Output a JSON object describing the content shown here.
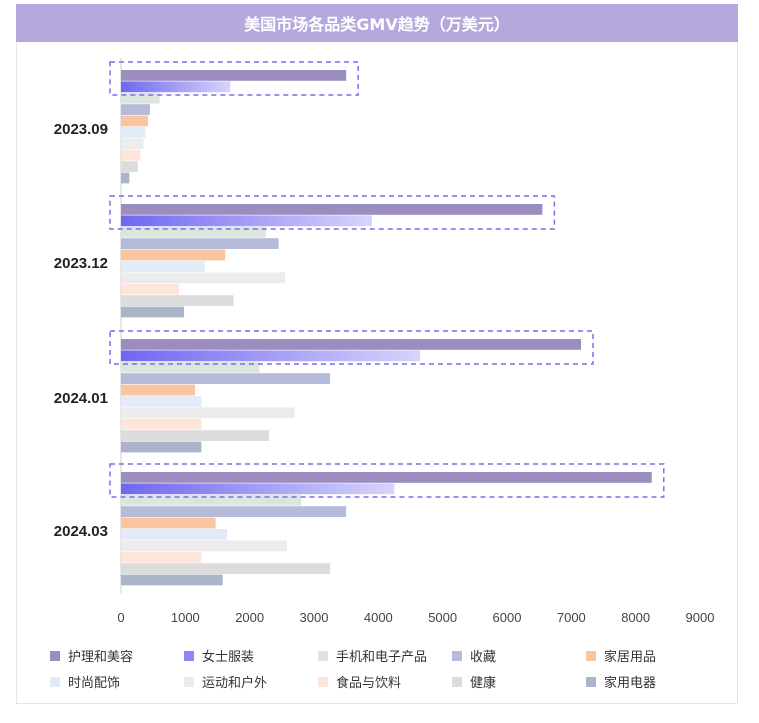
{
  "title": "美国市场各品类GMV趋势（万美元）",
  "colors": {
    "护理和美容": "#9b8dc0",
    "女士服装": "#8c86f7",
    "手机和电子产品": "#dde6dc",
    "收藏": "#b6bbd9",
    "家居用品": "#f8c59e",
    "时尚配饰": "#e2ebf8",
    "运动和户外": "#ececec",
    "食品与饮料": "#fde5da",
    "健康": "#dcdcdc",
    "家用电器": "#abb5c9",
    "highlight_border": "#7b6cf0"
  },
  "chart_data": {
    "type": "bar",
    "orientation": "horizontal",
    "title": "美国市场各品类GMV趋势（万美元）",
    "categories": [
      "2023.09",
      "2023.12",
      "2024.01",
      "2024.03"
    ],
    "xlim": [
      0,
      9000
    ],
    "xticks": [
      "0",
      "1000",
      "2000",
      "3000",
      "4000",
      "5000",
      "6000",
      "7000",
      "8000",
      "9000"
    ],
    "grid": false,
    "legend_position": "bottom",
    "series": [
      {
        "name": "护理和美容",
        "values": [
          3500,
          6550,
          7150,
          8250
        ]
      },
      {
        "name": "女士服装",
        "values": [
          1700,
          3900,
          4650,
          4250
        ]
      },
      {
        "name": "手机和电子产品",
        "values": [
          600,
          2250,
          2150,
          2800
        ]
      },
      {
        "name": "收藏",
        "values": [
          450,
          2450,
          3250,
          3500
        ]
      },
      {
        "name": "家居用品",
        "values": [
          420,
          1620,
          1150,
          1470
        ]
      },
      {
        "name": "时尚配饰",
        "values": [
          380,
          1300,
          1250,
          1650
        ]
      },
      {
        "name": "运动和户外",
        "values": [
          350,
          2550,
          2700,
          2580
        ]
      },
      {
        "name": "食品与饮料",
        "values": [
          300,
          900,
          1250,
          1250
        ]
      },
      {
        "name": "健康",
        "values": [
          260,
          1750,
          2300,
          3250
        ]
      },
      {
        "name": "家用电器",
        "values": [
          130,
          980,
          1250,
          1580
        ]
      }
    ],
    "highlighted_series": "护理和美容"
  }
}
